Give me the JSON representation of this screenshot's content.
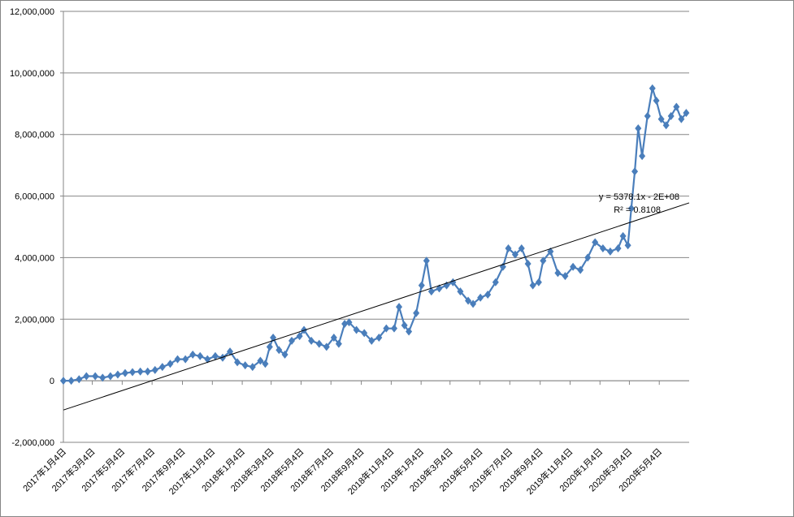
{
  "chart_data": {
    "type": "line",
    "xlim": [
      "2017-01-04",
      "2020-07-04"
    ],
    "xticks": [
      {
        "value": "2017-01-04",
        "label": "2017年1月4日"
      },
      {
        "value": "2017-03-04",
        "label": "2017年3月4日"
      },
      {
        "value": "2017-05-04",
        "label": "2017年5月4日"
      },
      {
        "value": "2017-07-04",
        "label": "2017年7月4日"
      },
      {
        "value": "2017-09-04",
        "label": "2017年9月4日"
      },
      {
        "value": "2017-11-04",
        "label": "2017年11月4日"
      },
      {
        "value": "2018-01-04",
        "label": "2018年1月4日"
      },
      {
        "value": "2018-03-04",
        "label": "2018年3月4日"
      },
      {
        "value": "2018-05-04",
        "label": "2018年5月4日"
      },
      {
        "value": "2018-07-04",
        "label": "2018年7月4日"
      },
      {
        "value": "2018-09-04",
        "label": "2018年9月4日"
      },
      {
        "value": "2018-11-04",
        "label": "2018年11月4日"
      },
      {
        "value": "2019-01-04",
        "label": "2019年1月4日"
      },
      {
        "value": "2019-03-04",
        "label": "2019年3月4日"
      },
      {
        "value": "2019-05-04",
        "label": "2019年5月4日"
      },
      {
        "value": "2019-07-04",
        "label": "2019年7月4日"
      },
      {
        "value": "2019-09-04",
        "label": "2019年9月4日"
      },
      {
        "value": "2019-11-04",
        "label": "2019年11月4日"
      },
      {
        "value": "2020-01-04",
        "label": "2020年1月4日"
      },
      {
        "value": "2020-03-04",
        "label": "2020年3月4日"
      },
      {
        "value": "2020-05-04",
        "label": "2020年5月4日"
      }
    ],
    "ylim": [
      -2000000,
      12000000
    ],
    "yticks": [
      {
        "value": -2000000,
        "label": "-2,000,000"
      },
      0,
      {
        "value": 2000000,
        "label": "2,000,000"
      },
      {
        "value": 4000000,
        "label": "4,000,000"
      },
      {
        "value": 6000000,
        "label": "6,000,000"
      },
      {
        "value": 8000000,
        "label": "8,000,000"
      },
      {
        "value": 10000000,
        "label": "10,000,000"
      },
      {
        "value": 12000000,
        "label": "12,000,000"
      }
    ],
    "negative_tick_color": "#ff0000",
    "grid": true,
    "x": [
      "2017-01-04",
      "2017-01-20",
      "2017-02-05",
      "2017-02-20",
      "2017-03-10",
      "2017-03-25",
      "2017-04-10",
      "2017-04-25",
      "2017-05-10",
      "2017-05-25",
      "2017-06-10",
      "2017-06-25",
      "2017-07-10",
      "2017-07-25",
      "2017-08-10",
      "2017-08-25",
      "2017-09-10",
      "2017-09-25",
      "2017-10-10",
      "2017-10-25",
      "2017-11-10",
      "2017-11-25",
      "2017-12-10",
      "2017-12-25",
      "2018-01-10",
      "2018-01-25",
      "2018-02-10",
      "2018-02-20",
      "2018-03-01",
      "2018-03-08",
      "2018-03-20",
      "2018-04-01",
      "2018-04-15",
      "2018-05-01",
      "2018-05-10",
      "2018-05-25",
      "2018-06-10",
      "2018-06-25",
      "2018-07-10",
      "2018-07-20",
      "2018-08-01",
      "2018-08-10",
      "2018-08-25",
      "2018-09-10",
      "2018-09-25",
      "2018-10-10",
      "2018-10-25",
      "2018-11-10",
      "2018-11-20",
      "2018-12-01",
      "2018-12-10",
      "2018-12-25",
      "2019-01-05",
      "2019-01-15",
      "2019-01-25",
      "2019-02-10",
      "2019-02-25",
      "2019-03-10",
      "2019-03-25",
      "2019-04-10",
      "2019-04-20",
      "2019-05-05",
      "2019-05-20",
      "2019-06-05",
      "2019-06-20",
      "2019-07-01",
      "2019-07-15",
      "2019-07-28",
      "2019-08-10",
      "2019-08-20",
      "2019-09-01",
      "2019-09-10",
      "2019-09-25",
      "2019-10-10",
      "2019-10-25",
      "2019-11-10",
      "2019-11-25",
      "2019-12-10",
      "2019-12-25",
      "2020-01-10",
      "2020-01-25",
      "2020-02-10",
      "2020-02-20",
      "2020-03-01",
      "2020-03-08",
      "2020-03-15",
      "2020-03-22",
      "2020-03-30",
      "2020-04-10",
      "2020-04-20",
      "2020-04-28",
      "2020-05-08",
      "2020-05-18",
      "2020-05-28",
      "2020-06-08",
      "2020-06-18",
      "2020-06-28"
    ],
    "series": [
      {
        "color": "#4a7ebb",
        "values": [
          0,
          0,
          50000,
          150000,
          150000,
          100000,
          150000,
          200000,
          250000,
          280000,
          300000,
          300000,
          350000,
          450000,
          550000,
          700000,
          700000,
          850000,
          800000,
          700000,
          800000,
          750000,
          950000,
          600000,
          500000,
          450000,
          650000,
          550000,
          1100000,
          1400000,
          1000000,
          850000,
          1300000,
          1450000,
          1650000,
          1300000,
          1200000,
          1100000,
          1400000,
          1200000,
          1850000,
          1900000,
          1650000,
          1550000,
          1300000,
          1400000,
          1700000,
          1700000,
          2400000,
          1800000,
          1600000,
          2200000,
          3100000,
          3900000,
          2900000,
          3000000,
          3100000,
          3200000,
          2900000,
          2600000,
          2500000,
          2700000,
          2800000,
          3200000,
          3700000,
          4300000,
          4100000,
          4300000,
          3800000,
          3100000,
          3200000,
          3900000,
          4200000,
          3500000,
          3400000,
          3700000,
          3600000,
          4000000,
          4500000,
          4300000,
          4200000,
          4300000,
          4700000,
          4400000,
          5600000,
          6800000,
          8200000,
          7300000,
          8600000,
          9500000,
          9100000,
          8500000,
          8300000,
          8600000,
          8900000,
          8500000,
          8700000
        ]
      }
    ],
    "trendline": {
      "x": [
        "2017-01-04",
        "2020-07-04"
      ],
      "values": [
        -950000,
        5780000
      ],
      "color": "#000000",
      "equation": "y = 5378.1x - 2E+08",
      "r2": "R² = 0.8108"
    }
  }
}
